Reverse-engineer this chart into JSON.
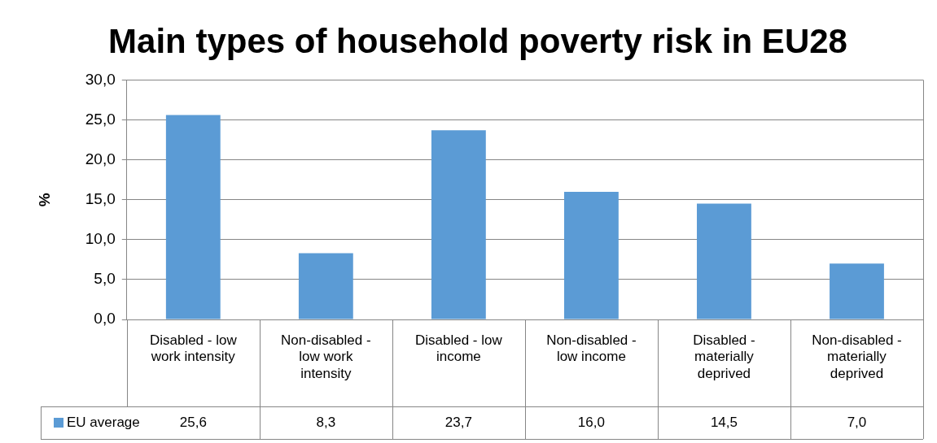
{
  "chart_data": {
    "type": "bar",
    "title": "Main types of household poverty risk in EU28",
    "ylabel": "%",
    "categories": [
      "Disabled - low work intensity",
      "Non-disabled - low work intensity",
      "Disabled - low income",
      "Non-disabled - low income",
      "Disabled - materially deprived",
      "Non-disabled - materially deprived"
    ],
    "series": [
      {
        "name": "EU average",
        "color": "#5b9bd5",
        "values": [
          25.6,
          8.3,
          23.7,
          16.0,
          14.5,
          7.0
        ],
        "value_labels": [
          "25,6",
          "8,3",
          "23,7",
          "16,0",
          "14,5",
          "7,0"
        ]
      }
    ],
    "ylim": [
      0,
      30
    ],
    "yticks": [
      {
        "value": 0,
        "label": "0,0"
      },
      {
        "value": 5,
        "label": "5,0"
      },
      {
        "value": 10,
        "label": "10,0"
      },
      {
        "value": 15,
        "label": "15,0"
      },
      {
        "value": 20,
        "label": "20,0"
      },
      {
        "value": 25,
        "label": "25,0"
      },
      {
        "value": 30,
        "label": "30,0"
      }
    ],
    "grid": "y",
    "legend": "bottom"
  }
}
